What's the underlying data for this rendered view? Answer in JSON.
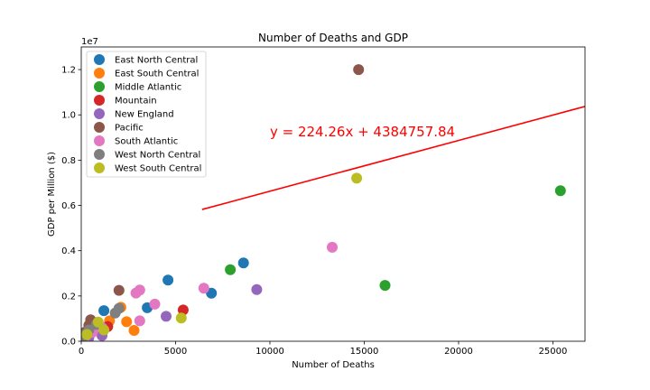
{
  "chart_data": {
    "type": "scatter",
    "title": "Number of Deaths and GDP",
    "xlabel": "Number of Deaths",
    "ylabel": "GDP per Million ($)",
    "y_offset_label": "1e7",
    "xlim": [
      0,
      26700
    ],
    "ylim": [
      0,
      13000000
    ],
    "x_ticks": [
      0,
      5000,
      10000,
      15000,
      20000,
      25000
    ],
    "x_tick_labels": [
      "0",
      "5000",
      "10000",
      "15000",
      "20000",
      "25000"
    ],
    "y_ticks": [
      0,
      2000000,
      4000000,
      6000000,
      8000000,
      10000000,
      12000000
    ],
    "y_tick_labels": [
      "0.0",
      "0.2",
      "0.4",
      "0.6",
      "0.8",
      "1.0",
      "1.2"
    ],
    "grid": false,
    "legend_position": "top-left",
    "annotation": {
      "text": "y = 224.26x + 4384757.84",
      "x": 10000,
      "y": 9050000,
      "color": "#ff0000"
    },
    "trendline": {
      "slope": 224.26,
      "intercept": 4384757.84,
      "x_start": 6400,
      "x_end": 26700,
      "color": "#ff0000"
    },
    "series": [
      {
        "name": "East North Central",
        "color": "#1f77b4",
        "points": [
          [
            1200,
            1350000
          ],
          [
            3500,
            1480000
          ],
          [
            4600,
            2700000
          ],
          [
            6900,
            2120000
          ],
          [
            8600,
            3460000
          ]
        ]
      },
      {
        "name": "East South Central",
        "color": "#ff7f0e",
        "points": [
          [
            800,
            700000
          ],
          [
            1500,
            900000
          ],
          [
            2100,
            1500000
          ],
          [
            2400,
            860000
          ],
          [
            2800,
            480000
          ]
        ]
      },
      {
        "name": "Middle Atlantic",
        "color": "#2ca02c",
        "points": [
          [
            150,
            150000
          ],
          [
            7900,
            3160000
          ],
          [
            16100,
            2470000
          ],
          [
            25400,
            6650000
          ]
        ]
      },
      {
        "name": "Mountain",
        "color": "#d62728",
        "points": [
          [
            100,
            250000
          ],
          [
            300,
            350000
          ],
          [
            500,
            500000
          ],
          [
            1400,
            650000
          ],
          [
            5400,
            1380000
          ]
        ]
      },
      {
        "name": "New England",
        "color": "#9467bd",
        "points": [
          [
            100,
            50000
          ],
          [
            400,
            150000
          ],
          [
            1100,
            250000
          ],
          [
            4500,
            1100000
          ],
          [
            9300,
            2280000
          ]
        ]
      },
      {
        "name": "Pacific",
        "color": "#8c564b",
        "points": [
          [
            200,
            400000
          ],
          [
            400,
            700000
          ],
          [
            500,
            950000
          ],
          [
            2000,
            2250000
          ],
          [
            14700,
            12000000
          ]
        ]
      },
      {
        "name": "South Atlantic",
        "color": "#e377c2",
        "points": [
          [
            200,
            200000
          ],
          [
            600,
            400000
          ],
          [
            1100,
            600000
          ],
          [
            3100,
            900000
          ],
          [
            2900,
            2130000
          ],
          [
            3100,
            2260000
          ],
          [
            3900,
            1640000
          ],
          [
            6500,
            2340000
          ],
          [
            13300,
            4150000
          ]
        ]
      },
      {
        "name": "West North Central",
        "color": "#7f7f7f",
        "points": [
          [
            50,
            100000
          ],
          [
            200,
            300000
          ],
          [
            400,
            500000
          ],
          [
            800,
            750000
          ],
          [
            1800,
            1250000
          ],
          [
            2000,
            1450000
          ]
        ]
      },
      {
        "name": "West South Central",
        "color": "#bcbd22",
        "points": [
          [
            300,
            300000
          ],
          [
            900,
            850000
          ],
          [
            1200,
            500000
          ],
          [
            5300,
            1030000
          ],
          [
            14600,
            7200000
          ]
        ]
      }
    ]
  }
}
